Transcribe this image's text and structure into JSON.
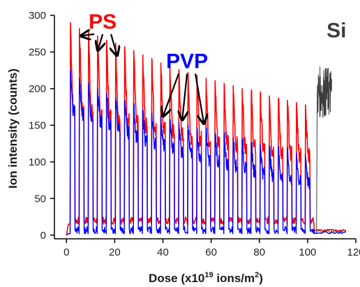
{
  "chart_data": {
    "type": "line",
    "xlabel": "Dose (x10",
    "xlabel_sup": "19",
    "xlabel_tail": " ions/m",
    "xlabel_sup2": "2",
    "xlabel_close": ")",
    "ylabel": "Ion intensity (counts)",
    "xlim": [
      -5,
      120
    ],
    "ylim": [
      -5,
      300
    ],
    "xticks": [
      "0",
      "20",
      "40",
      "60",
      "80",
      "100",
      "120"
    ],
    "yticks": [
      "0",
      "50",
      "100",
      "150",
      "200",
      "250",
      "300"
    ],
    "grid": false,
    "series": [
      {
        "name": "PS",
        "color": "#ff0000",
        "cycle_start_x": 1.5,
        "cycle_period": 3.75,
        "cycles": 27,
        "peak_y": [
          290,
          282,
          278,
          272,
          266,
          262,
          257,
          252,
          246,
          241,
          235,
          230,
          226,
          222,
          218,
          214,
          211,
          207,
          204,
          200,
          197,
          194,
          190,
          187,
          184,
          181,
          178
        ],
        "plateau_y": [
          172,
          170,
          168,
          166,
          163,
          160,
          157,
          153,
          150,
          147,
          144,
          141,
          138,
          135,
          132,
          130,
          128,
          126,
          124,
          122,
          120,
          118,
          116,
          114,
          112,
          110,
          108
        ],
        "low_y": 15,
        "tail_end_x": 116,
        "tail_y": 5
      },
      {
        "name": "PVP",
        "color": "#0000ff",
        "cycle_start_x": 1.5,
        "cycle_period": 3.75,
        "cycles": 27,
        "peak_y": [
          225,
          215,
          208,
          200,
          194,
          188,
          182,
          177,
          172,
          167,
          163,
          158,
          154,
          150,
          147,
          143,
          140,
          136,
          133,
          130,
          127,
          124,
          121,
          118,
          115,
          112,
          110
        ],
        "plateau_y": [
          170,
          165,
          160,
          155,
          150,
          145,
          140,
          135,
          130,
          126,
          122,
          118,
          114,
          110,
          106,
          103,
          100,
          97,
          94,
          91,
          88,
          85,
          82,
          79,
          76,
          73,
          70
        ],
        "low_y": 2,
        "tail_end_x": 116,
        "tail_y": 2
      },
      {
        "name": "Si",
        "color": "#3d3d3d",
        "x_start": 104,
        "x_end": 110,
        "mean_y": 195,
        "amplitude": 35,
        "baseline_y": 3,
        "baseline_to_x": 116
      }
    ],
    "annotations": [
      {
        "label": "PS",
        "color": "#ff0000",
        "x": 15,
        "y": 282,
        "arrows_to": [
          [
            6,
            272
          ],
          [
            13,
            252
          ],
          [
            21,
            245
          ]
        ]
      },
      {
        "label": "PVP",
        "color": "#0000ff",
        "x": 50,
        "y": 228,
        "arrows_to": [
          [
            40,
            162
          ],
          [
            48,
            157
          ],
          [
            57,
            152
          ]
        ]
      },
      {
        "label": "Si",
        "color": "#3d3d3d",
        "x": 112,
        "y": 270,
        "arrows_to": []
      }
    ]
  }
}
